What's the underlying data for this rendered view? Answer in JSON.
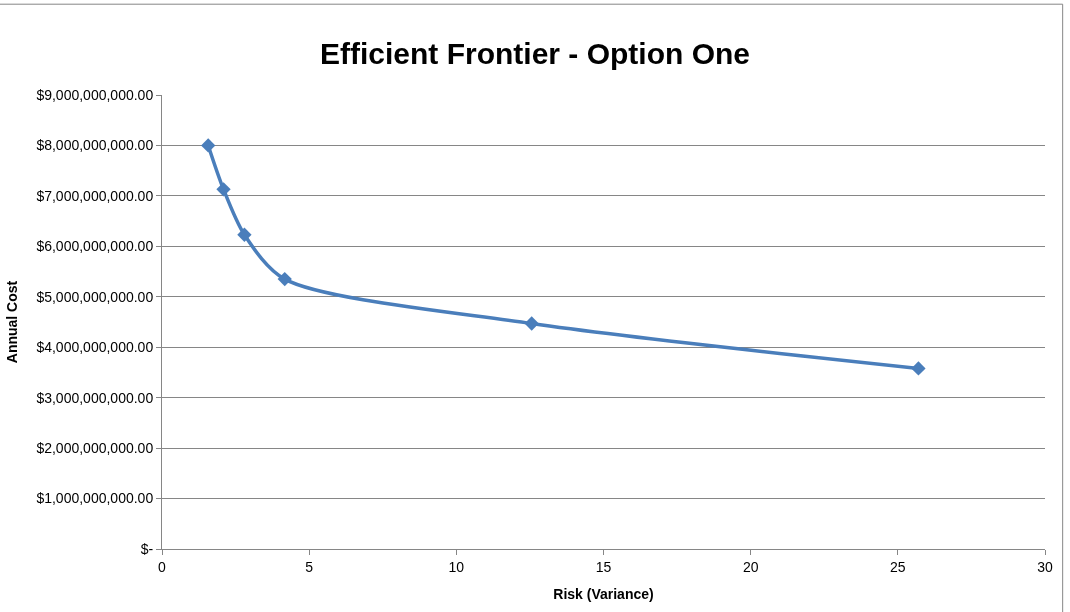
{
  "chart_data": {
    "type": "line",
    "title": "Efficient Frontier - Option One",
    "xlabel": "Risk (Variance)",
    "ylabel": "Annual Cost",
    "x": [
      1.57,
      2.09,
      2.8,
      4.17,
      12.56,
      25.7
    ],
    "series": [
      {
        "color": "#4a7ebb",
        "values": [
          8000000000,
          7130000000,
          6230000000,
          5350000000,
          4470000000,
          3580000000
        ]
      }
    ],
    "xlim": [
      0,
      30
    ],
    "xticks": [
      0,
      5,
      10,
      15,
      20,
      25,
      30
    ],
    "ylim": [
      0,
      9000000000
    ],
    "yticks": [
      {
        "value": 0,
        "label": "$-"
      },
      {
        "value": 1000000000,
        "label": "$1,000,000,000.00"
      },
      {
        "value": 2000000000,
        "label": "$2,000,000,000.00"
      },
      {
        "value": 3000000000,
        "label": "$3,000,000,000.00"
      },
      {
        "value": 4000000000,
        "label": "$4,000,000,000.00"
      },
      {
        "value": 5000000000,
        "label": "$5,000,000,000.00"
      },
      {
        "value": 6000000000,
        "label": "$6,000,000,000.00"
      },
      {
        "value": 7000000000,
        "label": "$7,000,000,000.00"
      },
      {
        "value": 8000000000,
        "label": "$8,000,000,000.00"
      },
      {
        "value": 9000000000,
        "label": "$9,000,000,000.00"
      }
    ],
    "grid": "y",
    "legend": false,
    "marker": "diamond",
    "line_style": "solid"
  }
}
